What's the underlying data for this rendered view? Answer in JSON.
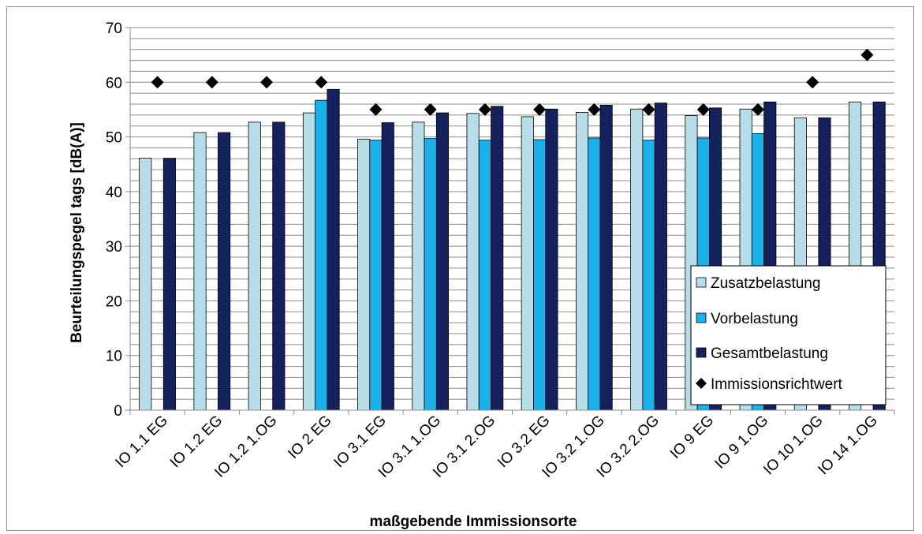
{
  "chart_data": {
    "type": "bar",
    "xlabel": "maßgebende Immissionsorte",
    "ylabel": "Beurteilungspegel  tags [dB(A)]",
    "ylim": [
      0,
      70
    ],
    "yticks": [
      0,
      10,
      20,
      30,
      40,
      50,
      60,
      70
    ],
    "grid": "horizontal, every 2 units",
    "legend_position": "right",
    "categories": [
      "IO 1.1 EG",
      "IO 1.2  EG",
      "IO 1.2  1.OG",
      "IO 2  EG",
      "IO 3.1  EG",
      "IO 3.1  1.OG",
      "IO 3.1  2.OG",
      "IO 3.2  EG",
      "IO 3.2  1.OG",
      "IO 3.2  2.OG",
      "IO 9  EG",
      "IO 9  1.OG",
      "IO 10  1.OG",
      "IO 14  1.OG"
    ],
    "series": [
      {
        "name": "Zusatzbelastung",
        "kind": "bar",
        "color": "#b7dde8",
        "values": [
          46.1,
          50.8,
          52.7,
          54.4,
          49.6,
          52.7,
          54.3,
          53.7,
          54.5,
          55.1,
          53.9,
          55.1,
          53.5,
          56.4
        ]
      },
      {
        "name": "Vorbelastung",
        "kind": "bar",
        "color": "#1ab0ea",
        "values": [
          null,
          null,
          null,
          56.7,
          49.4,
          49.7,
          49.4,
          49.5,
          49.8,
          49.4,
          49.8,
          50.6,
          null,
          null
        ]
      },
      {
        "name": "Gesamtbelastung",
        "kind": "bar",
        "color": "#14215c",
        "values": [
          46.1,
          50.8,
          52.7,
          58.7,
          52.6,
          54.4,
          55.6,
          55.1,
          55.8,
          56.2,
          55.3,
          56.4,
          53.5,
          56.4
        ]
      },
      {
        "name": "Immissionsrichtwert",
        "kind": "marker",
        "marker": "diamond",
        "color": "#000000",
        "values": [
          60,
          60,
          60,
          60,
          55,
          55,
          55,
          55,
          55,
          55,
          55,
          55,
          60,
          65
        ]
      }
    ]
  }
}
